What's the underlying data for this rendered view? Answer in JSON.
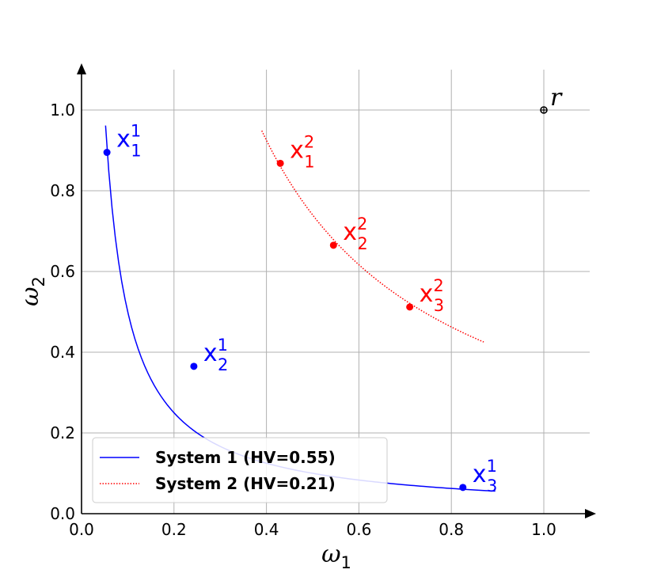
{
  "chart_data": {
    "type": "line",
    "xlabel_base": "ω",
    "xlabel_sub": "1",
    "ylabel_base": "ω",
    "ylabel_sub": "2",
    "xlim": [
      0.0,
      1.1
    ],
    "ylim": [
      0.0,
      1.1
    ],
    "xticks": [
      0.0,
      0.2,
      0.4,
      0.6,
      0.8,
      1.0
    ],
    "yticks": [
      0.0,
      0.2,
      0.4,
      0.6,
      0.8,
      1.0
    ],
    "xtick_labels": [
      "0.0",
      "0.2",
      "0.4",
      "0.6",
      "0.8",
      "1.0"
    ],
    "ytick_labels": [
      "0.0",
      "0.2",
      "0.4",
      "0.6",
      "0.8",
      "1.0"
    ],
    "grid": true,
    "legend_position": "lower-left",
    "series": [
      {
        "name": "System 1 (HV=0.55)",
        "color": "#0000ff",
        "style": "solid",
        "curve_k": 0.05,
        "curve_x_range": [
          0.052,
          0.895
        ],
        "points": [
          {
            "base": "x",
            "sub": "1",
            "sup": "1",
            "x": 0.055,
            "y": 0.895
          },
          {
            "base": "x",
            "sub": "2",
            "sup": "1",
            "x": 0.243,
            "y": 0.365
          },
          {
            "base": "x",
            "sub": "3",
            "sup": "1",
            "x": 0.825,
            "y": 0.065
          }
        ]
      },
      {
        "name": "System 2 (HV=0.21)",
        "color": "#ff0000",
        "style": "dotted",
        "curve_k": 0.37,
        "curve_x_range": [
          0.39,
          0.87
        ],
        "points": [
          {
            "base": "x",
            "sub": "1",
            "sup": "2",
            "x": 0.43,
            "y": 0.868
          },
          {
            "base": "x",
            "sub": "2",
            "sup": "2",
            "x": 0.545,
            "y": 0.665
          },
          {
            "base": "x",
            "sub": "3",
            "sup": "2",
            "x": 0.71,
            "y": 0.512
          }
        ]
      }
    ],
    "reference_point": {
      "label": "r",
      "x": 1.0,
      "y": 1.0,
      "color": "#000000"
    }
  }
}
